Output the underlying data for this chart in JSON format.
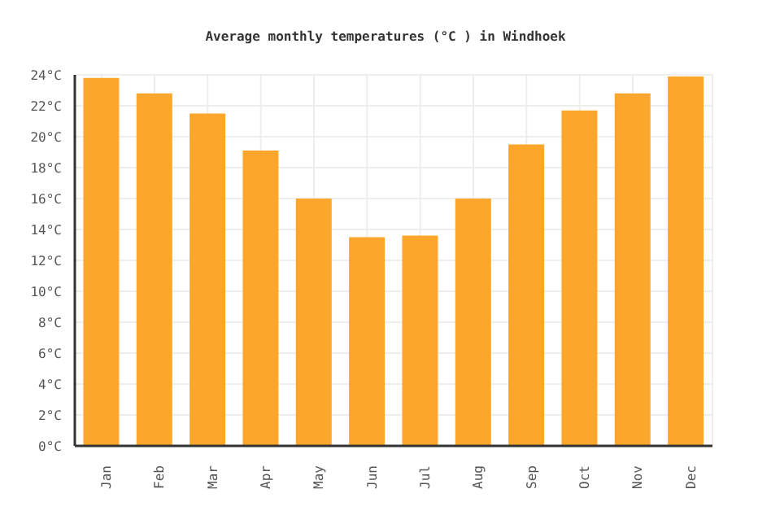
{
  "chart_data": {
    "type": "bar",
    "title": "Average monthly temperatures (°C ) in Windhoek",
    "categories": [
      "Jan",
      "Feb",
      "Mar",
      "Apr",
      "May",
      "Jun",
      "Jul",
      "Aug",
      "Sep",
      "Oct",
      "Nov",
      "Dec"
    ],
    "values": [
      23.8,
      22.8,
      21.5,
      19.1,
      16.0,
      13.5,
      13.6,
      16.0,
      19.5,
      21.7,
      22.8,
      23.9
    ],
    "color": "#fca72c",
    "ylim": [
      0,
      24
    ],
    "yticks": [
      {
        "value": 0,
        "label": "0°C"
      },
      {
        "value": 2,
        "label": "2°C"
      },
      {
        "value": 4,
        "label": "4°C"
      },
      {
        "value": 6,
        "label": "6°C"
      },
      {
        "value": 8,
        "label": "8°C"
      },
      {
        "value": 10,
        "label": "10°C"
      },
      {
        "value": 12,
        "label": "12°C"
      },
      {
        "value": 14,
        "label": "14°C"
      },
      {
        "value": 16,
        "label": "16°C"
      },
      {
        "value": 18,
        "label": "18°C"
      },
      {
        "value": 20,
        "label": "20°C"
      },
      {
        "value": 22,
        "label": "22°C"
      },
      {
        "value": 24,
        "label": "24°C"
      }
    ],
    "grid": true
  }
}
